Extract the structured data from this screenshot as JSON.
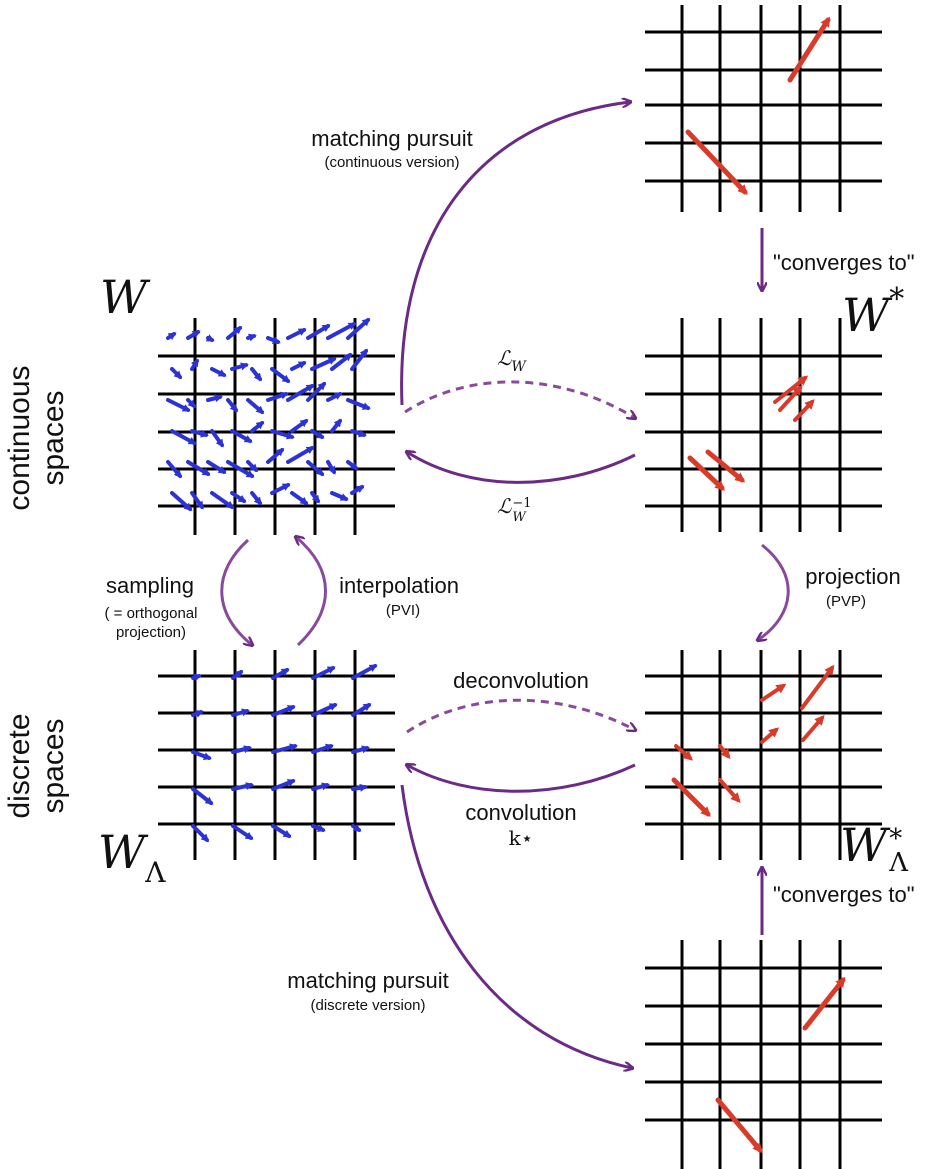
{
  "colors": {
    "grid": "#000000",
    "blue": "#2b33d6",
    "red": "#d93b2a",
    "purple": "#6b2a86",
    "purple_light": "#8a4a9c"
  },
  "labels": {
    "continuous_spaces": [
      "continuous",
      "spaces"
    ],
    "discrete_spaces": [
      "discrete",
      "spaces"
    ],
    "W": "W",
    "W_star": "W",
    "W_star_sup": "*",
    "W_lambda": "W",
    "W_lambda_sub": "Λ",
    "W_lambda_star": "W",
    "W_lambda_star_sup": "*",
    "W_lambda_star_sub": "Λ"
  },
  "edges": {
    "mp_continuous": {
      "title": "matching pursuit",
      "subtitle": "(continuous version)"
    },
    "converges_top": "\"converges to\"",
    "L_W": "ℒ",
    "L_W_sub": "W",
    "L_W_inv": "ℒ",
    "L_W_inv_sub": "W",
    "L_W_inv_sup": "−1",
    "sampling": {
      "title": "sampling",
      "subtitle": "( = orthogonal projection)"
    },
    "interpolation": {
      "title": "interpolation",
      "subtitle": "(PVI)"
    },
    "projection": {
      "title": "projection",
      "subtitle": "(PVP)"
    },
    "deconvolution": "deconvolution",
    "convolution": {
      "title": "convolution",
      "subtitle": "k⋆"
    },
    "mp_discrete": {
      "title": "matching pursuit",
      "subtitle": "(discrete version)"
    },
    "converges_bottom": "\"converges to\""
  }
}
